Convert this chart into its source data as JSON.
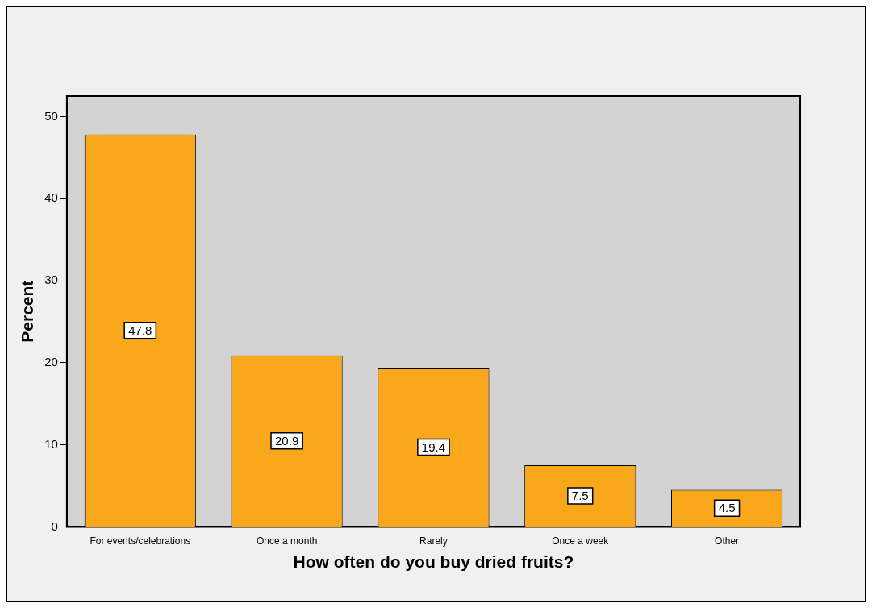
{
  "chart_data": {
    "type": "bar",
    "xlabel": "How often do you buy dried fruits?",
    "ylabel": "Percent",
    "categories": [
      "For events/celebrations",
      "Once a month",
      "Rarely",
      "Once a week",
      "Other"
    ],
    "values": [
      47.8,
      20.9,
      19.4,
      7.5,
      4.5
    ],
    "color": "#f9a81b",
    "ylim": [
      0,
      52.5
    ],
    "yticks": [
      0,
      10,
      20,
      30,
      40,
      50
    ],
    "grid": false,
    "legend": false,
    "data_labels": true
  }
}
